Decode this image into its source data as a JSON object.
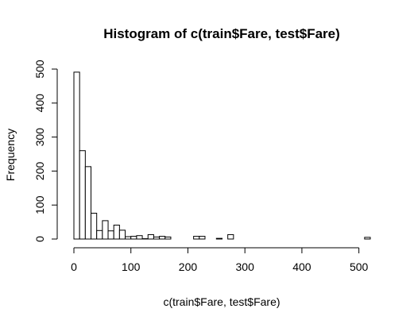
{
  "chart_data": {
    "type": "bar",
    "title": "Histogram of c(train$Fare, test$Fare)",
    "xlabel": "c(train$Fare, test$Fare)",
    "ylabel": "Frequency",
    "bin_width": 10,
    "bin_edges_start": 0,
    "values": [
      491,
      260,
      213,
      76,
      25,
      54,
      24,
      41,
      26,
      7,
      8,
      10,
      1,
      13,
      6,
      8,
      6,
      0,
      0,
      0,
      0,
      8,
      8,
      0,
      0,
      2,
      0,
      13,
      0,
      0,
      0,
      0,
      0,
      0,
      0,
      0,
      0,
      0,
      0,
      0,
      0,
      0,
      0,
      0,
      0,
      0,
      0,
      0,
      0,
      0,
      0,
      5
    ],
    "xlim": [
      0,
      520
    ],
    "ylim": [
      0,
      500
    ],
    "xticks": [
      0,
      100,
      200,
      300,
      400,
      500
    ],
    "yticks": [
      0,
      100,
      200,
      300,
      400,
      500
    ],
    "grid": false,
    "legend": "none",
    "bar_fill": "#ffffff",
    "bar_stroke": "#000000"
  }
}
